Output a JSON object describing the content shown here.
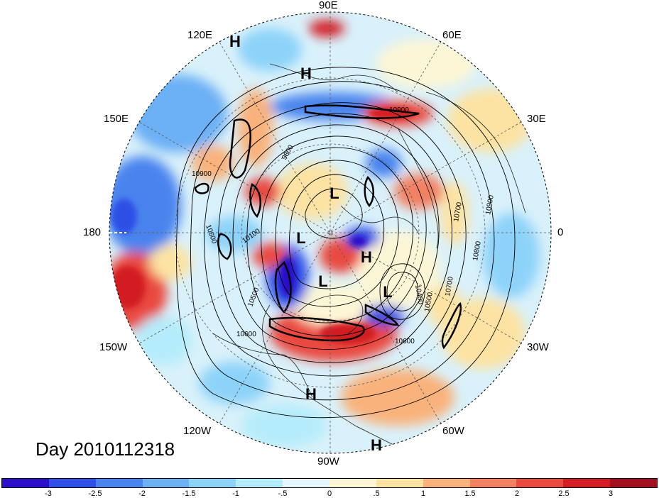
{
  "title": "Day 2010112318",
  "lon_labels": {
    "n90e": "90E",
    "n60e": "60E",
    "n30e": "30E",
    "e0": "0",
    "n30w": "30W",
    "n60w": "60W",
    "n90w": "90W",
    "n120w": "120W",
    "n150w": "150W",
    "w180": "180",
    "n150e": "150E",
    "n120e": "120E"
  },
  "colorbar": {
    "colors": [
      "#2a10c8",
      "#2f4fe6",
      "#4a84ee",
      "#6cb0f5",
      "#8dd3f9",
      "#b5ecfb",
      "#e4f7fb",
      "#fdf6d6",
      "#fde3a3",
      "#f9b27c",
      "#f28062",
      "#e94a3f",
      "#d21d24",
      "#a20f1e"
    ],
    "ticks": [
      "-3",
      "-2.5",
      "-2",
      "-1.5",
      "-1",
      "-.5",
      "0",
      ".5",
      "1",
      "1.5",
      "2",
      "2.5",
      "3"
    ]
  },
  "pressure_centers": [
    {
      "label": "H"
    },
    {
      "label": "H"
    },
    {
      "label": "L"
    },
    {
      "label": "L"
    },
    {
      "label": "H"
    },
    {
      "label": "L"
    },
    {
      "label": "L"
    },
    {
      "label": "H"
    },
    {
      "label": "H"
    }
  ],
  "contour_labels": [
    "10900",
    "10900",
    "9800",
    "10600",
    "10100",
    "10700",
    "10800",
    "10900",
    "10400",
    "10500",
    "10700",
    "10500",
    "10600",
    "10600"
  ]
}
